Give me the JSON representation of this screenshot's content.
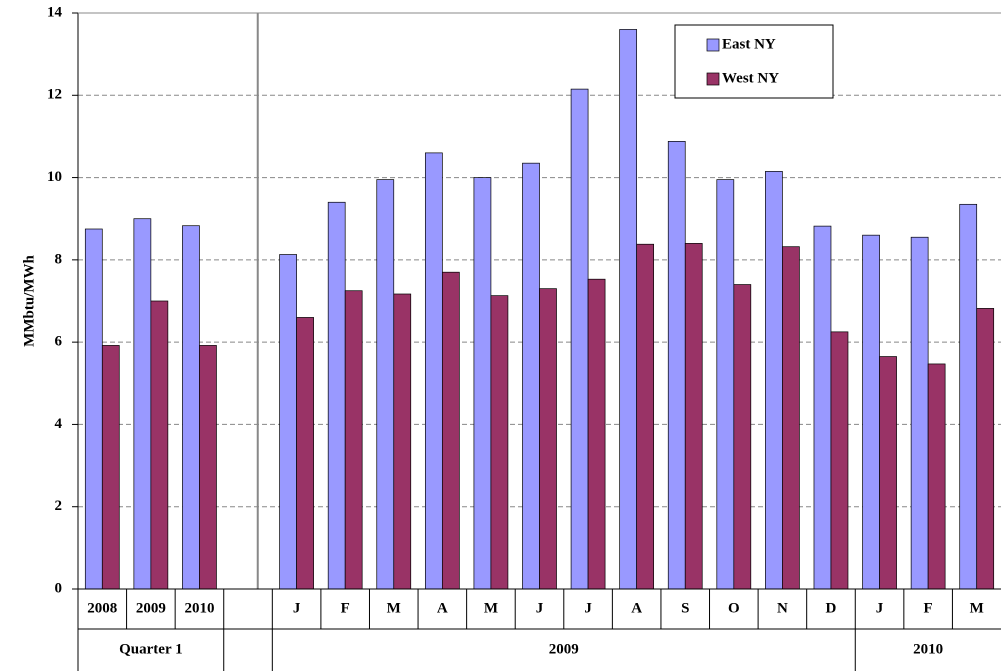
{
  "chart_data": {
    "type": "bar",
    "y_label": "MMbtu/MWh",
    "categories": [
      "2008",
      "2009",
      "2010",
      null,
      "J",
      "F",
      "M",
      "A",
      "M",
      "J",
      "J",
      "A",
      "S",
      "O",
      "N",
      "D",
      "J",
      "F",
      "M"
    ],
    "groups": [
      {
        "label": "Quarter 1",
        "span": 3
      },
      {
        "label": null,
        "span": 1
      },
      {
        "label": "2009",
        "span": 12
      },
      {
        "label": "2010",
        "span": 3
      }
    ],
    "series": [
      {
        "name": "East NY",
        "color": "#9999ff",
        "values": [
          8.75,
          9.0,
          8.83,
          null,
          8.13,
          9.4,
          9.95,
          10.6,
          10.0,
          10.35,
          12.15,
          13.6,
          10.88,
          9.95,
          10.15,
          8.82,
          8.6,
          8.55,
          9.35
        ]
      },
      {
        "name": "West NY",
        "color": "#993366",
        "values": [
          5.92,
          7.0,
          5.92,
          null,
          6.6,
          7.25,
          7.17,
          7.7,
          7.13,
          7.3,
          7.53,
          8.38,
          8.4,
          7.4,
          8.32,
          6.25,
          5.65,
          5.47,
          6.82
        ]
      }
    ],
    "ylim": [
      0,
      14
    ],
    "yticks": [
      0,
      2,
      4,
      6,
      8,
      10,
      12,
      14
    ],
    "grid": true,
    "legend": "top-right"
  }
}
